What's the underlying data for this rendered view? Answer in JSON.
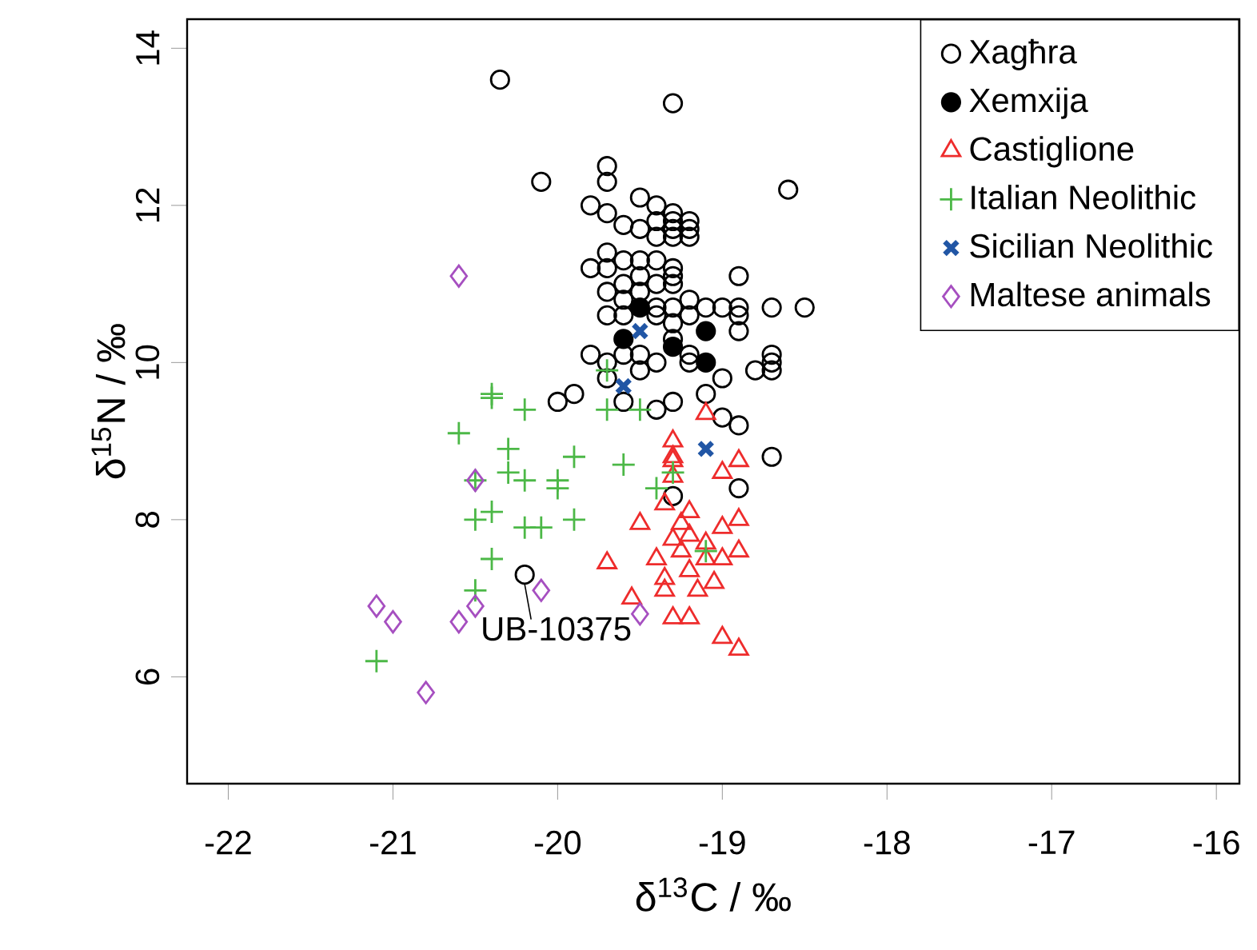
{
  "chart_data": {
    "type": "scatter",
    "xlabel": "δ$^{13}$C / ‰",
    "ylabel": "δ$^{15}$N / ‰",
    "xlim": [
      -22.25,
      -15.86
    ],
    "ylim": [
      4.64,
      14.37
    ],
    "xticks": [
      -22,
      -21,
      -20,
      -19,
      -18,
      -17,
      -16
    ],
    "yticks": [
      6,
      8,
      10,
      12,
      14
    ],
    "grid": false,
    "legend": "top right",
    "annotations": [
      {
        "text": "UB-10375",
        "x": -20.2,
        "y": 7.3
      }
    ],
    "series": [
      {
        "name": "Xagħra",
        "color": "#000000",
        "marker": "circle",
        "x": [
          -20.35,
          -19.3,
          -20.1,
          -18.6,
          -19.7,
          -19.7,
          -19.8,
          -19.7,
          -19.5,
          -19.4,
          -19.6,
          -19.5,
          -19.4,
          -19.3,
          -19.3,
          -19.3,
          -19.3,
          -19.2,
          -19.2,
          -19.2,
          -19.4,
          -19.8,
          -19.7,
          -19.7,
          -19.6,
          -19.5,
          -19.4,
          -19.3,
          -19.7,
          -19.6,
          -19.5,
          -19.5,
          -19.4,
          -19.3,
          -19.3,
          -18.9,
          -19.7,
          -19.6,
          -19.4,
          -19.3,
          -19.2,
          -19.1,
          -19.0,
          -18.9,
          -18.9,
          -18.7,
          -18.5,
          -19.6,
          -19.4,
          -19.3,
          -19.2,
          -18.9,
          -19.8,
          -19.7,
          -19.6,
          -19.5,
          -19.4,
          -19.3,
          -19.2,
          -19.2,
          -18.7,
          -18.7,
          -18.7,
          -18.8,
          -19.0,
          -19.1,
          -19.6,
          -19.5,
          -19.4,
          -19.3,
          -20.0,
          -19.9,
          -19.0,
          -18.9,
          -18.7,
          -18.9,
          -19.3,
          -20.2,
          -19.7
        ],
        "values": [
          13.6,
          13.3,
          12.3,
          12.2,
          12.5,
          12.3,
          12.0,
          11.9,
          12.1,
          12.0,
          11.75,
          11.7,
          11.8,
          11.9,
          11.8,
          11.7,
          11.6,
          11.8,
          11.7,
          11.6,
          11.6,
          11.2,
          11.4,
          11.2,
          11.3,
          11.3,
          11.3,
          11.2,
          10.9,
          11.0,
          11.1,
          10.9,
          11.0,
          11.1,
          11.0,
          11.1,
          10.6,
          10.8,
          10.7,
          10.7,
          10.8,
          10.7,
          10.7,
          10.7,
          10.6,
          10.7,
          10.7,
          10.6,
          10.6,
          10.5,
          10.6,
          10.4,
          10.1,
          10.0,
          10.1,
          10.1,
          10.0,
          10.3,
          10.1,
          10.0,
          10.1,
          10.0,
          9.9,
          9.9,
          9.8,
          9.6,
          9.5,
          9.9,
          9.4,
          9.5,
          9.5,
          9.6,
          9.3,
          9.2,
          8.8,
          8.4,
          8.3,
          7.3,
          9.8
        ]
      },
      {
        "name": "Xemxija",
        "color": "#000000",
        "marker": "filled circle",
        "x": [
          -19.5,
          -19.6,
          -19.3,
          -19.1,
          -19.1
        ],
        "values": [
          10.7,
          10.3,
          10.2,
          10.4,
          10.0
        ]
      },
      {
        "name": "Castiglione",
        "color": "#ee2c2c",
        "marker": "triangle",
        "x": [
          -19.1,
          -19.3,
          -19.3,
          -18.9,
          -19.3,
          -19.3,
          -19.0,
          -19.35,
          -19.2,
          -18.9,
          -19.5,
          -19.25,
          -19.0,
          -19.2,
          -19.3,
          -19.1,
          -18.9,
          -19.4,
          -19.25,
          -19.1,
          -19.0,
          -19.35,
          -19.2,
          -19.05,
          -19.15,
          -19.7,
          -19.55,
          -19.3,
          -19.2,
          -19.0,
          -18.9,
          -19.35
        ],
        "values": [
          9.35,
          9.0,
          8.8,
          8.75,
          8.75,
          8.55,
          8.6,
          8.2,
          8.1,
          8.0,
          7.95,
          7.95,
          7.9,
          7.8,
          7.75,
          7.7,
          7.6,
          7.5,
          7.6,
          7.5,
          7.5,
          7.25,
          7.35,
          7.2,
          7.1,
          7.45,
          7.0,
          6.75,
          6.75,
          6.5,
          6.35,
          7.1
        ]
      },
      {
        "name": "Italian Neolithic",
        "color": "#4cb847",
        "marker": "plus",
        "x": [
          -20.4,
          -20.4,
          -20.2,
          -20.6,
          -20.3,
          -20.3,
          -20.2,
          -20.0,
          -20.0,
          -19.9,
          -19.6,
          -20.5,
          -20.5,
          -20.4,
          -20.2,
          -20.1,
          -19.9,
          -20.4,
          -20.5,
          -21.1,
          -19.7,
          -19.7,
          -19.5,
          -19.4,
          -19.3,
          -19.1
        ],
        "values": [
          9.6,
          9.55,
          9.4,
          9.1,
          8.9,
          8.6,
          8.5,
          8.5,
          8.4,
          8.8,
          8.7,
          8.5,
          8.0,
          8.1,
          7.9,
          7.9,
          8.0,
          7.5,
          7.1,
          6.2,
          9.9,
          9.4,
          9.4,
          8.4,
          8.6,
          7.6
        ]
      },
      {
        "name": "Sicilian Neolithic",
        "color": "#2156a5",
        "marker": "cross",
        "x": [
          -19.5,
          -19.6,
          -19.1
        ],
        "values": [
          10.4,
          9.7,
          8.9
        ]
      },
      {
        "name": "Maltese animals",
        "color": "#a64fc0",
        "marker": "diamond",
        "x": [
          -20.6,
          -20.5,
          -20.1,
          -21.1,
          -21.0,
          -20.6,
          -20.5,
          -19.5,
          -20.8
        ],
        "values": [
          11.1,
          8.5,
          7.1,
          6.9,
          6.7,
          6.7,
          6.9,
          6.8,
          5.8
        ]
      }
    ]
  }
}
